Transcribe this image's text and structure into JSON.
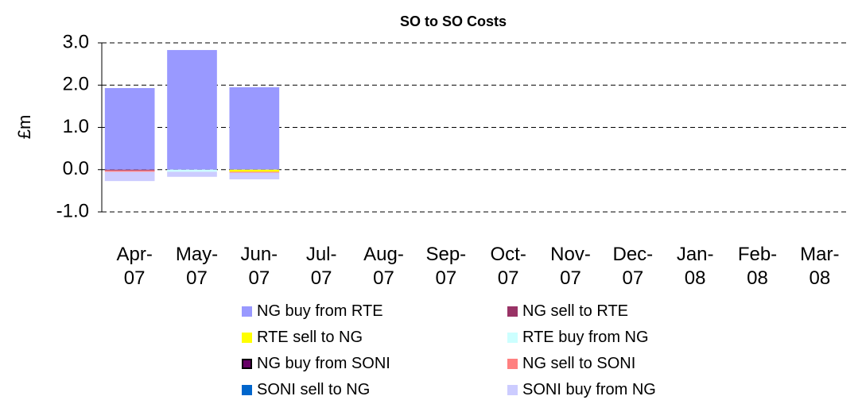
{
  "chart_data": {
    "type": "bar",
    "stacked": true,
    "title": "SO to SO Costs",
    "y_label": "£m",
    "categories": [
      "Apr-07",
      "May-07",
      "Jun-07",
      "Jul-07",
      "Aug-07",
      "Sep-07",
      "Oct-07",
      "Nov-07",
      "Dec-07",
      "Jan-08",
      "Feb-08",
      "Mar-08"
    ],
    "series": [
      {
        "name": "NG buy from RTE",
        "color": "#9999ff",
        "values": [
          1.93,
          2.83,
          1.95,
          null,
          null,
          null,
          null,
          null,
          null,
          null,
          null,
          null
        ]
      },
      {
        "name": "NG sell to RTE",
        "color": "#993366",
        "values": [
          -0.02,
          0,
          0,
          null,
          null,
          null,
          null,
          null,
          null,
          null,
          null,
          null
        ]
      },
      {
        "name": "RTE sell to NG",
        "color": "#ffff00",
        "values": [
          0,
          0,
          -0.05,
          null,
          null,
          null,
          null,
          null,
          null,
          null,
          null,
          null
        ]
      },
      {
        "name": "RTE buy from NG",
        "color": "#ccffff",
        "values": [
          0,
          -0.05,
          0,
          null,
          null,
          null,
          null,
          null,
          null,
          null,
          null,
          null
        ]
      },
      {
        "name": "NG buy from SONI",
        "color": "#660066",
        "values": [
          0,
          0,
          0,
          null,
          null,
          null,
          null,
          null,
          null,
          null,
          null,
          null
        ]
      },
      {
        "name": "NG sell to SONI",
        "color": "#ff8080",
        "values": [
          -0.03,
          0,
          -0.02,
          null,
          null,
          null,
          null,
          null,
          null,
          null,
          null,
          null
        ]
      },
      {
        "name": "SONI sell to NG",
        "color": "#0066cc",
        "values": [
          0,
          0,
          0,
          null,
          null,
          null,
          null,
          null,
          null,
          null,
          null,
          null
        ]
      },
      {
        "name": "SONI buy from NG",
        "color": "#ccccff",
        "values": [
          -0.22,
          -0.12,
          -0.16,
          null,
          null,
          null,
          null,
          null,
          null,
          null,
          null,
          null
        ]
      }
    ],
    "ylim": [
      -1,
      3
    ],
    "yticks": [
      {
        "value": -1,
        "label": "-1.0"
      },
      {
        "value": 0,
        "label": "0.0"
      },
      {
        "value": 1,
        "label": "1.0"
      },
      {
        "value": 2,
        "label": "2.0"
      },
      {
        "value": 3,
        "label": "3.0"
      }
    ],
    "grid": true,
    "legend": "bottom"
  }
}
